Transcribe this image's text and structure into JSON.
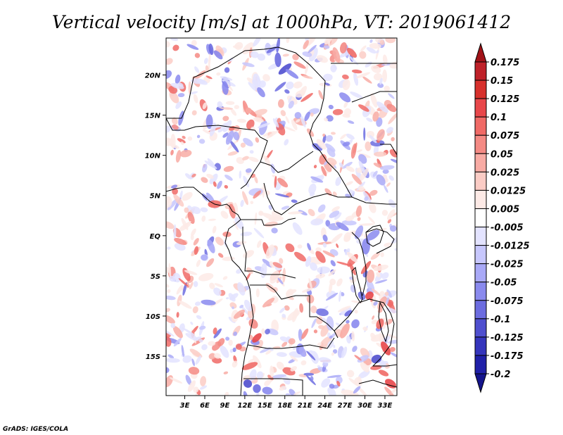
{
  "chart_data": {
    "type": "heatmap",
    "title": "Vertical velocity [m/s] at 1000hPa, VT: 2019061412",
    "variable": "Vertical velocity",
    "units": "m/s",
    "level": "1000hPa",
    "valid_time": "2019061412",
    "x_ticks": [
      "3E",
      "6E",
      "9E",
      "12E",
      "15E",
      "18E",
      "21E",
      "24E",
      "27E",
      "30E",
      "33E"
    ],
    "x_tick_values": [
      3,
      6,
      9,
      12,
      15,
      18,
      21,
      24,
      27,
      30,
      33
    ],
    "y_ticks": [
      "20N",
      "15N",
      "10N",
      "5N",
      "EQ",
      "5S",
      "10S",
      "15S"
    ],
    "y_tick_values": [
      20,
      15,
      10,
      5,
      0,
      -5,
      -10,
      -15
    ],
    "xlim": [
      0.2,
      34.8
    ],
    "ylim": [
      -19.9,
      24.6
    ],
    "colorbar": {
      "labels": [
        "0.175",
        "0.15",
        "0.125",
        "0.1",
        "0.075",
        "0.05",
        "0.025",
        "0.0125",
        "0.005",
        "-0.005",
        "-0.0125",
        "-0.025",
        "-0.05",
        "-0.075",
        "-0.1",
        "-0.125",
        "-0.175",
        "-0.2"
      ],
      "colors": [
        "#a11218",
        "#bf2129",
        "#d7302c",
        "#e8474a",
        "#f06a66",
        "#f48a84",
        "#f8aba4",
        "#fbccc5",
        "#fdeae6",
        "#ffffff",
        "#e3e3ff",
        "#c7c7fd",
        "#a9a9f7",
        "#8a8aee",
        "#6c6ce0",
        "#4f4fcf",
        "#3535bc",
        "#2020a8",
        "#14148c"
      ]
    },
    "colormap_note": "mostly near zero (white) with scattered light red positive and light blue negative patches; strongest values along coasts and eastern highlands"
  },
  "credit": "GrADS: IGES/COLA"
}
